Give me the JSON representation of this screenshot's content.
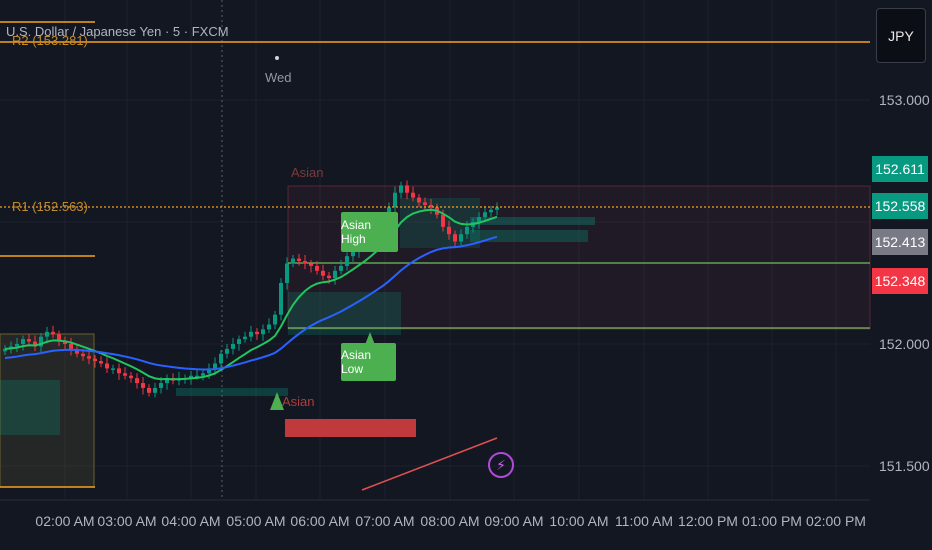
{
  "title": "U.S. Dollar / Japanese Yen · 5 · FXCM",
  "currency_button": "JPY",
  "session_label": "Wed",
  "levels": {
    "r2_label": "R2 (153.281)",
    "r1_label": "R1 (152.563)"
  },
  "annotations": {
    "asian_top": "Asian",
    "asian_bottom": "Asian",
    "asian_high": "Asian High",
    "asian_low": "Asian Low"
  },
  "price_axis": {
    "ticks": [
      "153.000",
      "152.000",
      "151.500"
    ],
    "tags": [
      {
        "value": "152.611",
        "color": "#089981"
      },
      {
        "value": "152.558",
        "color": "#089981"
      },
      {
        "value": "152.413",
        "color": "#787b86"
      },
      {
        "value": "152.348",
        "color": "#f23645"
      }
    ]
  },
  "time_axis": [
    "02:00 AM",
    "03:00 AM",
    "04:00 AM",
    "05:00 AM",
    "06:00 AM",
    "07:00 AM",
    "08:00 AM",
    "09:00 AM",
    "10:00 AM",
    "11:00 AM",
    "12:00 PM",
    "01:00 PM",
    "02:00 PM"
  ],
  "icons": {
    "alert": "lightning-icon",
    "session_marker": "dot-icon"
  },
  "colors": {
    "background": "#131722",
    "up": "#089981",
    "down": "#f23645",
    "pivot": "#f7a21b",
    "ema_fast": "#22c55e",
    "ema_slow": "#2962ff",
    "asian_box": "#4caf50"
  },
  "chart_data": {
    "type": "candlestick",
    "title": "U.S. Dollar / Japanese Yen · 5 · FXCM",
    "xlabel": "",
    "ylabel": "",
    "ylim": [
      151.4,
      153.4
    ],
    "x_ticks": [
      "02:00 AM",
      "03:00 AM",
      "04:00 AM",
      "05:00 AM",
      "06:00 AM",
      "07:00 AM",
      "08:00 AM",
      "09:00 AM",
      "10:00 AM",
      "11:00 AM",
      "12:00 PM",
      "01:00 PM",
      "02:00 PM"
    ],
    "y_ticks": [
      153.0,
      152.0,
      151.5
    ],
    "pivots": {
      "R2": 153.281,
      "R1": 152.563
    },
    "last_prices": [
      152.611,
      152.558,
      152.413,
      152.348
    ],
    "close_series": [
      151.98,
      151.99,
      152.0,
      152.02,
      152.01,
      151.99,
      152.03,
      152.05,
      152.04,
      152.01,
      152.0,
      151.98,
      151.96,
      151.95,
      151.94,
      151.93,
      151.92,
      151.9,
      151.9,
      151.88,
      151.87,
      151.86,
      151.84,
      151.82,
      151.8,
      151.82,
      151.84,
      151.86,
      151.85,
      151.86,
      151.86,
      151.87,
      151.87,
      151.88,
      151.9,
      151.92,
      151.96,
      151.98,
      152.0,
      152.02,
      152.03,
      152.05,
      152.04,
      152.06,
      152.08,
      152.12,
      152.25,
      152.33,
      152.35,
      152.34,
      152.33,
      152.32,
      152.3,
      152.28,
      152.27,
      152.3,
      152.32,
      152.36,
      152.38,
      152.4,
      152.42,
      152.45,
      152.48,
      152.5,
      152.56,
      152.62,
      152.65,
      152.62,
      152.6,
      152.58,
      152.57,
      152.56,
      152.53,
      152.48,
      152.45,
      152.42,
      152.45,
      152.48,
      152.5,
      152.52,
      152.54,
      152.55,
      152.56
    ]
  }
}
